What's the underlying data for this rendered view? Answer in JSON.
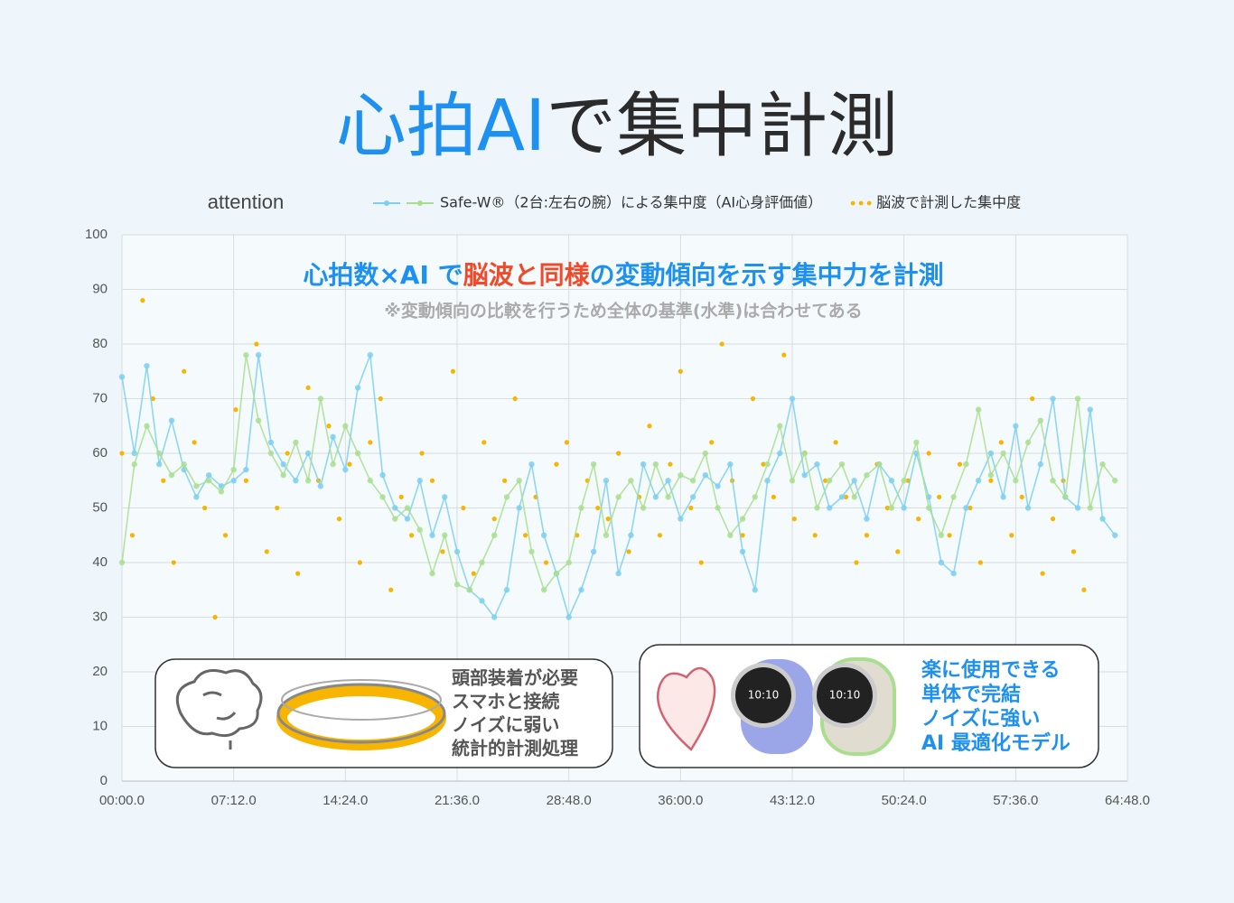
{
  "chart_data": {
    "type": "line",
    "title_parts": [
      "心拍AI",
      "で集中計測"
    ],
    "ylabel": "attention",
    "headline_parts": [
      "心拍数×AI で",
      "脳波と同様",
      "の変動傾向を示す集中力を計測"
    ],
    "subnote": "※変動傾向の比較を行うため全体の基準(水準)は合わせてある",
    "left_box": [
      "頭部装着が必要",
      "スマホと接続",
      "ノイズに弱い",
      "統計的計測処理"
    ],
    "right_box": [
      "楽に使用できる",
      "単体で完結",
      "ノイズに強い",
      "AI 最適化モデル"
    ],
    "watch_time": "10:10",
    "grid": true,
    "xlim": [
      0,
      3888
    ],
    "ylim": [
      0,
      100
    ],
    "yticks": [
      0,
      10,
      20,
      30,
      40,
      50,
      60,
      70,
      80,
      90,
      100
    ],
    "xticks": [
      {
        "value": 0,
        "label": "00:00.0"
      },
      {
        "value": 432,
        "label": "07:12.0"
      },
      {
        "value": 864,
        "label": "14:24.0"
      },
      {
        "value": 1296,
        "label": "21:36.0"
      },
      {
        "value": 1728,
        "label": "28:48.0"
      },
      {
        "value": 2160,
        "label": "36:00.0"
      },
      {
        "value": 2592,
        "label": "43:12.0"
      },
      {
        "value": 3024,
        "label": "50:24.0"
      },
      {
        "value": 3456,
        "label": "57:36.0"
      },
      {
        "value": 3888,
        "label": "64:48.0"
      }
    ],
    "x": [
      0,
      48,
      96,
      144,
      192,
      240,
      288,
      336,
      384,
      432,
      480,
      528,
      576,
      624,
      672,
      720,
      768,
      816,
      864,
      912,
      960,
      1008,
      1056,
      1104,
      1152,
      1200,
      1248,
      1296,
      1344,
      1392,
      1440,
      1488,
      1536,
      1584,
      1632,
      1680,
      1728,
      1776,
      1824,
      1872,
      1920,
      1968,
      2016,
      2064,
      2112,
      2160,
      2208,
      2256,
      2304,
      2352,
      2400,
      2448,
      2496,
      2544,
      2592,
      2640,
      2688,
      2736,
      2784,
      2832,
      2880,
      2928,
      2976,
      3024,
      3072,
      3120,
      3168,
      3216,
      3264,
      3312,
      3360,
      3408,
      3456,
      3504,
      3552,
      3600,
      3648,
      3696,
      3744,
      3792,
      3840
    ],
    "series": [
      {
        "name": "Safe-W®（2台:左右の腕）による集中度（AI心身評価値）",
        "color": "#7ccff0",
        "values": [
          74,
          60,
          76,
          58,
          66,
          57,
          52,
          56,
          54,
          55,
          57,
          78,
          62,
          58,
          55,
          60,
          54,
          63,
          57,
          72,
          78,
          56,
          50,
          48,
          55,
          45,
          52,
          42,
          35,
          33,
          30,
          35,
          50,
          58,
          45,
          38,
          30,
          35,
          42,
          55,
          38,
          45,
          58,
          52,
          55,
          48,
          52,
          56,
          54,
          58,
          42,
          35,
          55,
          60,
          70,
          56,
          58,
          50,
          52,
          55,
          48,
          58,
          55,
          50,
          60,
          52,
          40,
          38,
          50,
          55,
          60,
          52,
          65,
          50,
          58,
          70,
          52,
          50,
          68,
          48,
          45
        ]
      },
      {
        "color": "#a9de8f",
        "values": [
          40,
          58,
          65,
          60,
          56,
          58,
          54,
          55,
          53,
          57,
          78,
          66,
          60,
          56,
          62,
          55,
          70,
          58,
          65,
          60,
          55,
          52,
          48,
          50,
          46,
          38,
          45,
          36,
          35,
          40,
          45,
          52,
          55,
          42,
          35,
          38,
          40,
          50,
          58,
          45,
          52,
          55,
          50,
          58,
          52,
          56,
          55,
          60,
          50,
          45,
          48,
          52,
          58,
          65,
          55,
          60,
          50,
          55,
          58,
          52,
          56,
          58,
          50,
          55,
          62,
          50,
          45,
          52,
          58,
          68,
          56,
          60,
          55,
          62,
          66,
          55,
          52,
          70,
          50,
          58,
          55
        ]
      },
      {
        "name": "脳波で計測した集中度",
        "color": "#f7b500",
        "type": "scatter",
        "x": [
          0,
          40,
          80,
          120,
          160,
          200,
          240,
          280,
          320,
          360,
          400,
          440,
          480,
          520,
          560,
          600,
          640,
          680,
          720,
          760,
          800,
          840,
          880,
          920,
          960,
          1000,
          1040,
          1080,
          1120,
          1160,
          1200,
          1240,
          1280,
          1320,
          1360,
          1400,
          1440,
          1480,
          1520,
          1560,
          1600,
          1640,
          1680,
          1720,
          1760,
          1800,
          1840,
          1880,
          1920,
          1960,
          2000,
          2040,
          2080,
          2120,
          2160,
          2200,
          2240,
          2280,
          2320,
          2360,
          2400,
          2440,
          2480,
          2520,
          2560,
          2600,
          2640,
          2680,
          2720,
          2760,
          2800,
          2840,
          2880,
          2920,
          2960,
          3000,
          3040,
          3080,
          3120,
          3160,
          3200,
          3240,
          3280,
          3320,
          3360,
          3400,
          3440,
          3480,
          3520,
          3560,
          3600,
          3640,
          3680,
          3720
        ],
        "values": [
          60,
          45,
          88,
          70,
          55,
          40,
          75,
          62,
          50,
          30,
          45,
          68,
          55,
          80,
          42,
          50,
          60,
          38,
          72,
          55,
          65,
          48,
          58,
          40,
          62,
          70,
          35,
          52,
          45,
          60,
          55,
          42,
          75,
          50,
          38,
          62,
          48,
          55,
          70,
          45,
          52,
          40,
          58,
          62,
          45,
          55,
          50,
          48,
          60,
          42,
          52,
          65,
          45,
          58,
          75,
          50,
          40,
          62,
          80,
          55,
          45,
          70,
          58,
          52,
          78,
          48,
          60,
          45,
          55,
          62,
          52,
          40,
          45,
          58,
          50,
          42,
          55,
          48,
          60,
          52,
          45,
          58,
          50,
          40,
          55,
          62,
          45,
          52,
          70,
          38,
          48,
          55,
          42,
          35
        ]
      }
    ]
  }
}
